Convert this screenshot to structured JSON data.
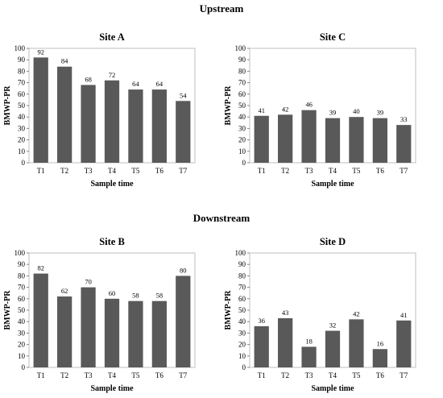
{
  "sections": {
    "upstream": "Upstream",
    "downstream": "Downstream"
  },
  "chart_data": [
    {
      "type": "bar",
      "title": "Site A",
      "xlabel": "Sample time",
      "ylabel": "BMWP-PR",
      "categories": [
        "T1",
        "T2",
        "T3",
        "T4",
        "T5",
        "T6",
        "T7"
      ],
      "values": [
        92,
        84,
        68,
        72,
        64,
        64,
        54
      ],
      "ylim": [
        0,
        100
      ],
      "yticks": [
        0,
        10,
        20,
        30,
        40,
        50,
        60,
        70,
        80,
        90,
        100
      ],
      "grid": false,
      "bar_color": "#595959"
    },
    {
      "type": "bar",
      "title": "Site C",
      "xlabel": "Sample time",
      "ylabel": "BMWP-PR",
      "categories": [
        "T1",
        "T2",
        "T3",
        "T4",
        "T5",
        "T6",
        "T7"
      ],
      "values": [
        41,
        42,
        46,
        39,
        40,
        39,
        33
      ],
      "ylim": [
        0,
        100
      ],
      "yticks": [
        0,
        10,
        20,
        30,
        40,
        50,
        60,
        70,
        80,
        90,
        100
      ],
      "grid": false,
      "bar_color": "#595959"
    },
    {
      "type": "bar",
      "title": "Site B",
      "xlabel": "Sample time",
      "ylabel": "BMWP-PR",
      "categories": [
        "T1",
        "T2",
        "T3",
        "T4",
        "T5",
        "T6",
        "T7"
      ],
      "values": [
        82,
        62,
        70,
        60,
        58,
        58,
        80
      ],
      "ylim": [
        0,
        100
      ],
      "yticks": [
        0,
        10,
        20,
        30,
        40,
        50,
        60,
        70,
        80,
        90,
        100
      ],
      "grid": false,
      "bar_color": "#595959"
    },
    {
      "type": "bar",
      "title": "Site D",
      "xlabel": "Sample time",
      "ylabel": "BMWP-PR",
      "categories": [
        "T1",
        "T2",
        "T3",
        "T4",
        "T5",
        "T6",
        "T7"
      ],
      "values": [
        36,
        43,
        18,
        32,
        42,
        16,
        41
      ],
      "ylim": [
        0,
        100
      ],
      "yticks": [
        0,
        10,
        20,
        30,
        40,
        50,
        60,
        70,
        80,
        90,
        100
      ],
      "grid": false,
      "bar_color": "#595959"
    }
  ]
}
